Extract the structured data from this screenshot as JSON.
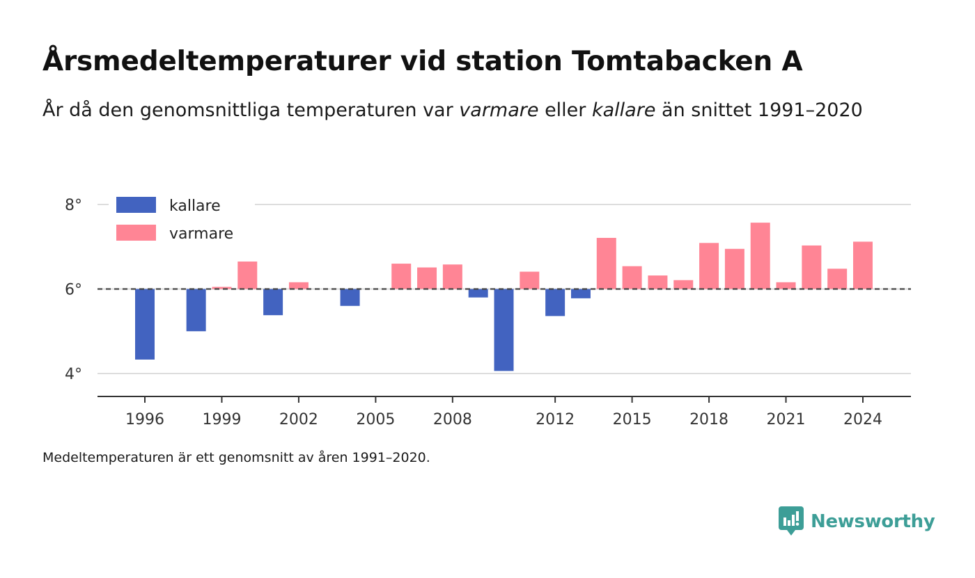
{
  "title_part1": "Årsmedeltemperaturer vid station Tomtabacken A",
  "subtitle_lead": "År då den genomsnittliga temperaturen var ",
  "subtitle_warm_word": "varmare",
  "subtitle_mid": " eller ",
  "subtitle_cold_word": "kallare",
  "subtitle_tail": " än snittet 1991–2020",
  "footnote": "Medeltemperaturen är ett genomsnitt av åren 1991–2020.",
  "brand": {
    "name": "Newsworthy",
    "logo_icon": "newsworthy-logo-icon",
    "color": "#3d9e97"
  },
  "chart_data": {
    "type": "bar",
    "baseline": 6.0,
    "ylim": [
      3.5,
      8.1
    ],
    "y_ticks": [
      4,
      6,
      8
    ],
    "y_tick_labels": [
      "4°",
      "6°",
      "8°"
    ],
    "x_ticks": [
      1996,
      1999,
      2002,
      2005,
      2008,
      2012,
      2015,
      2018,
      2021,
      2024
    ],
    "xlim": [
      1994.2,
      2026.8
    ],
    "grid": true,
    "legend_placement": "top-left",
    "colors": {
      "kallare": "#4263c0",
      "varmare": "#ff8595"
    },
    "series": [
      {
        "name": "kallare"
      },
      {
        "name": "varmare"
      }
    ],
    "years": [
      1996,
      1998,
      1999,
      2000,
      2001,
      2002,
      2004,
      2006,
      2007,
      2008,
      2009,
      2010,
      2011,
      2012,
      2013,
      2014,
      2015,
      2016,
      2017,
      2018,
      2019,
      2020,
      2021,
      2022,
      2023,
      2024
    ],
    "values": [
      4.33,
      5.0,
      6.05,
      6.65,
      5.38,
      6.16,
      5.6,
      6.6,
      6.51,
      6.58,
      5.8,
      4.06,
      6.41,
      5.36,
      5.78,
      7.21,
      6.54,
      6.32,
      6.21,
      7.09,
      6.95,
      7.57,
      6.16,
      7.03,
      6.48,
      7.12
    ]
  }
}
